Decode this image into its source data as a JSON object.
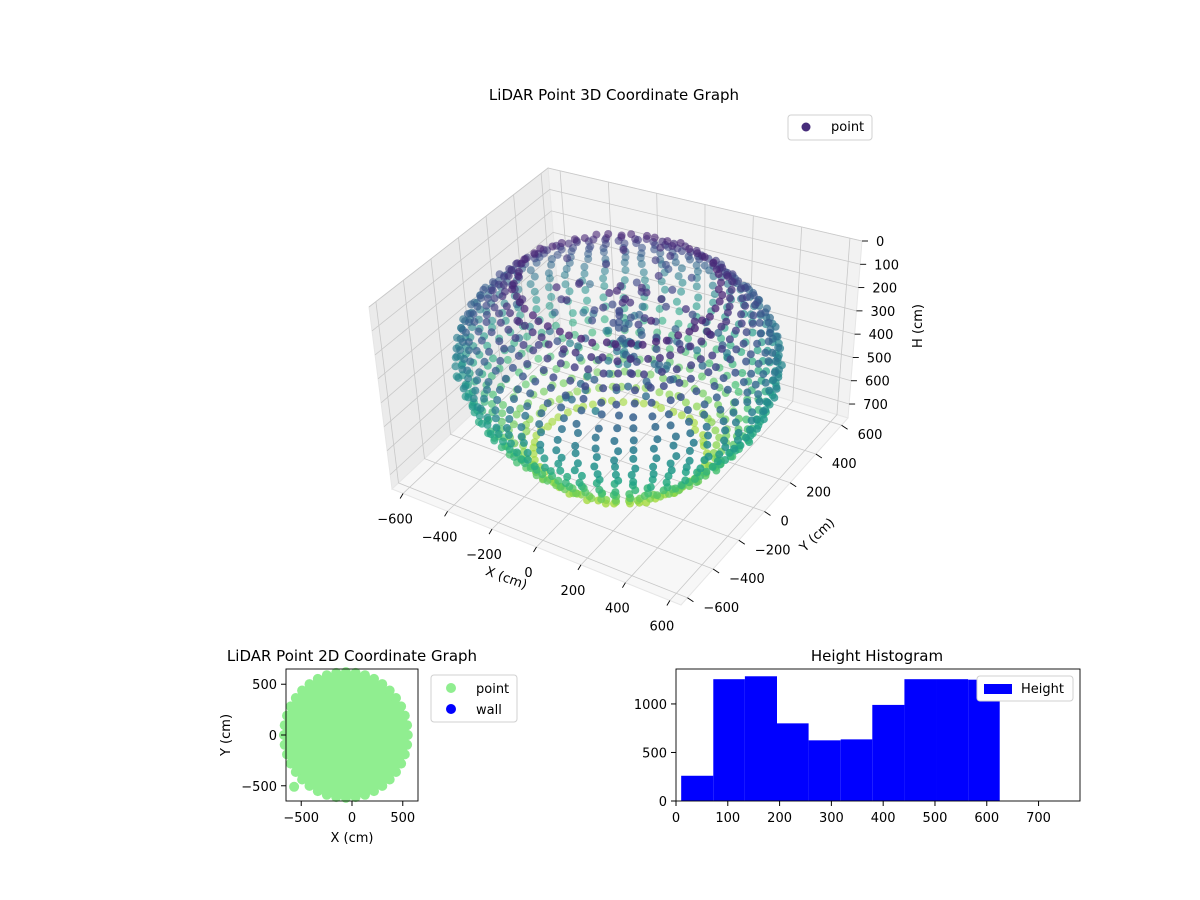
{
  "chart_data": [
    {
      "type": "scatter3d",
      "title": "LiDAR Point 3D Coordinate Graph",
      "xlabel": "X (cm)",
      "ylabel": "Y (cm)",
      "zlabel": "H (cm)",
      "xticks": [
        -600,
        -400,
        -200,
        0,
        200,
        400,
        600
      ],
      "yticks": [
        -600,
        -400,
        -200,
        0,
        200,
        400,
        600
      ],
      "zticks": [
        0,
        100,
        200,
        300,
        400,
        500,
        600,
        700
      ],
      "xlim": [
        -650,
        650
      ],
      "ylim": [
        -650,
        650
      ],
      "zlim": [
        760,
        0
      ],
      "legend": [
        {
          "label": "point",
          "color": "#472d7b"
        }
      ],
      "legend_position": "top-right",
      "colormap": "viridis",
      "series": [
        {
          "name": "point",
          "shape": "ring of vertical scan columns",
          "radius": 600,
          "height_range": [
            0,
            720
          ]
        }
      ],
      "grid": true
    },
    {
      "type": "scatter",
      "title": "LiDAR Point 2D Coordinate Graph",
      "xlabel": "X (cm)",
      "ylabel": "Y (cm)",
      "xticks": [
        -500,
        0,
        500
      ],
      "yticks": [
        -500,
        0,
        500
      ],
      "xlim": [
        -650,
        650
      ],
      "ylim": [
        -650,
        650
      ],
      "legend": [
        {
          "label": "point",
          "color": "#90ee90"
        },
        {
          "label": "wall",
          "color": "#0000ff"
        }
      ],
      "legend_position": "outside-right",
      "series": [
        {
          "name": "point",
          "color": "#90ee90",
          "radius": 600,
          "outlier": [
            -570,
            -510
          ]
        },
        {
          "name": "wall",
          "color": "#0000ff",
          "points": []
        }
      ]
    },
    {
      "type": "histogram",
      "title": "Height Histogram",
      "xticks": [
        0,
        100,
        200,
        300,
        400,
        500,
        600,
        700
      ],
      "yticks": [
        0,
        500,
        1000
      ],
      "xlim": [
        0,
        780
      ],
      "ylim": [
        0,
        1360
      ],
      "legend": [
        {
          "label": "Height",
          "color": "#0000ff"
        }
      ],
      "legend_position": "top-right",
      "bar_color": "#0000ff",
      "bins": [
        10,
        72,
        133,
        195,
        256,
        318,
        379,
        441,
        502,
        564,
        625
      ],
      "counts": [
        260,
        1255,
        1285,
        800,
        625,
        635,
        990,
        1255,
        1255,
        1250
      ]
    }
  ]
}
